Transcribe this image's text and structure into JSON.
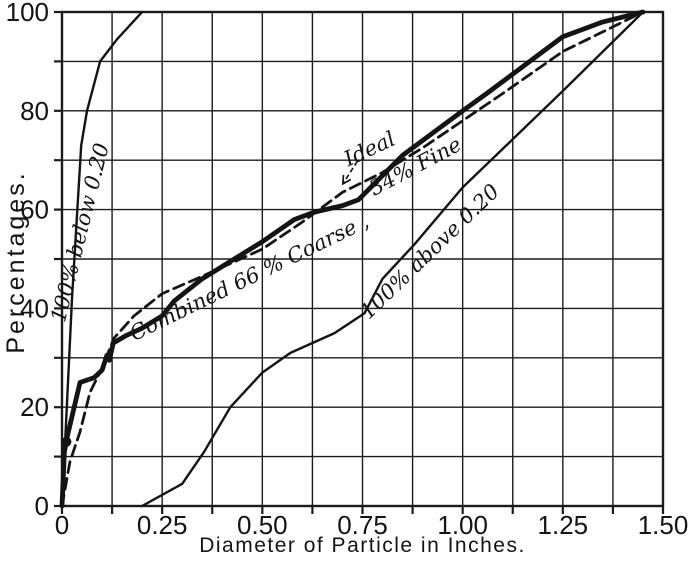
{
  "figure": {
    "background": "#ffffff",
    "ink_color": "#141414"
  },
  "chart_data": {
    "type": "line",
    "title": "",
    "xlabel": "Diameter of Particle in Inches.",
    "ylabel": "Percentages.",
    "xlim": [
      0,
      1.5
    ],
    "ylim": [
      0,
      100
    ],
    "grid": true,
    "x_grid_step": 0.125,
    "y_grid_step": 10,
    "legend_position": "none",
    "xticks": {
      "values": [
        0,
        0.25,
        0.5,
        0.75,
        1.0,
        1.25,
        1.5
      ],
      "labels": [
        "0",
        "0.25",
        "0.50",
        "0.75",
        "1.00",
        "1.25",
        "1.50"
      ]
    },
    "yticks": {
      "values": [
        0,
        20,
        40,
        60,
        80,
        100
      ],
      "labels": [
        "0",
        "20",
        "40",
        "60",
        "80",
        "100"
      ]
    },
    "series": [
      {
        "name": "fine-aggregate-curve",
        "label": "100% below 0.20",
        "style": "thin",
        "points": [
          [
            0,
            0
          ],
          [
            0.012,
            20
          ],
          [
            0.025,
            42
          ],
          [
            0.048,
            73
          ],
          [
            0.0625,
            80
          ],
          [
            0.095,
            90
          ],
          [
            0.1375,
            94.5
          ],
          [
            0.2,
            100
          ]
        ]
      },
      {
        "name": "coarse-aggregate-curve",
        "label": "100% above 0.20",
        "style": "thin",
        "points": [
          [
            0.2,
            0
          ],
          [
            0.3,
            4.5
          ],
          [
            0.355,
            11
          ],
          [
            0.42,
            20
          ],
          [
            0.5,
            27
          ],
          [
            0.57,
            31
          ],
          [
            0.68,
            35
          ],
          [
            0.755,
            39
          ],
          [
            0.8,
            46
          ],
          [
            0.88,
            53
          ],
          [
            1.0,
            64.5
          ],
          [
            1.25,
            84
          ],
          [
            1.45,
            100
          ]
        ]
      },
      {
        "name": "ideal-curve",
        "label": "Ideal",
        "style": "dashed",
        "points": [
          [
            0,
            0
          ],
          [
            0.02,
            9
          ],
          [
            0.045,
            15
          ],
          [
            0.07,
            23
          ],
          [
            0.1,
            28
          ],
          [
            0.13,
            34
          ],
          [
            0.18,
            38.5
          ],
          [
            0.25,
            43
          ],
          [
            0.35,
            46.5
          ],
          [
            0.5,
            52
          ],
          [
            0.6,
            57.5
          ],
          [
            0.7,
            63.5
          ],
          [
            0.8,
            67.5
          ],
          [
            0.9,
            72.5
          ],
          [
            1.0,
            78
          ],
          [
            1.1,
            83.5
          ],
          [
            1.25,
            92
          ],
          [
            1.35,
            96
          ],
          [
            1.45,
            100
          ]
        ]
      },
      {
        "name": "combined-mixture-curve",
        "label": "Combined 66% Coarse, 34% Fine",
        "style": "thick",
        "points": [
          [
            0,
            0
          ],
          [
            0.006,
            11
          ],
          [
            0.013,
            14
          ],
          [
            0.045,
            25
          ],
          [
            0.08,
            26
          ],
          [
            0.1,
            27.5
          ],
          [
            0.112,
            30.5
          ],
          [
            0.118,
            29.5
          ],
          [
            0.128,
            33
          ],
          [
            0.16,
            34.5
          ],
          [
            0.2,
            36
          ],
          [
            0.25,
            38.5
          ],
          [
            0.28,
            41.5
          ],
          [
            0.35,
            46
          ],
          [
            0.5,
            53.5
          ],
          [
            0.58,
            58
          ],
          [
            0.63,
            59.5
          ],
          [
            0.7,
            60.8
          ],
          [
            0.74,
            62
          ],
          [
            0.85,
            71
          ],
          [
            1.0,
            80
          ],
          [
            1.06,
            83.5
          ],
          [
            1.25,
            95
          ],
          [
            1.35,
            98
          ],
          [
            1.45,
            100
          ]
        ]
      }
    ],
    "knot": {
      "x": 0.011,
      "y": 13
    },
    "annotations": [
      {
        "name": "label-100-below-020",
        "text": "100% below 0.20",
        "x": 0.062,
        "y": 55,
        "rotation": -76
      },
      {
        "name": "label-combined-66-coarse",
        "text": "Combined 66 % Coarse ,",
        "x": 0.475,
        "y": 45,
        "rotation": -26
      },
      {
        "name": "label-34-fine",
        "text": "34% Fine",
        "x": 0.89,
        "y": 67.5,
        "rotation": -28
      },
      {
        "name": "label-ideal",
        "text": "Ideal",
        "x": 0.775,
        "y": 71,
        "rotation": -25
      },
      {
        "name": "label-100-above-020",
        "text": "100% above 0.20",
        "x": 0.93,
        "y": 50.5,
        "rotation": -44
      }
    ],
    "ideal_arrow": {
      "from": [
        0.737,
        69.8
      ],
      "to": [
        0.701,
        65.2
      ]
    }
  }
}
